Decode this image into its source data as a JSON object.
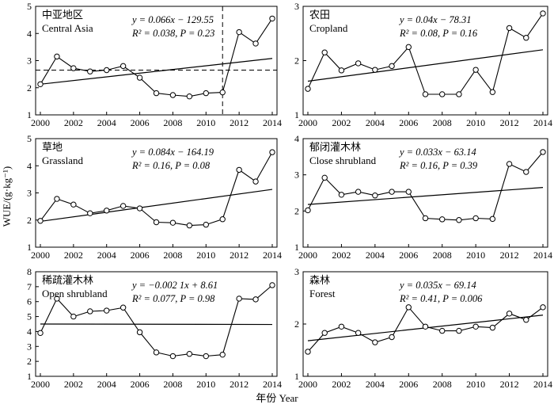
{
  "figure": {
    "ylabel": "WUE/(g·kg⁻¹)",
    "xlabel": "年份 Year"
  },
  "chart_data": [
    {
      "type": "line",
      "title_zh": "中亚地区",
      "title_en": "Central Asia",
      "equation": "y = 0.066x − 129.55",
      "stats": "R² = 0.038, P = 0.23",
      "x": [
        2000,
        2001,
        2002,
        2003,
        2004,
        2005,
        2006,
        2007,
        2008,
        2009,
        2010,
        2011,
        2012,
        2013,
        2014
      ],
      "values": [
        2.13,
        3.15,
        2.72,
        2.6,
        2.65,
        2.8,
        2.37,
        1.8,
        1.73,
        1.68,
        1.8,
        1.83,
        4.05,
        3.63,
        4.55
      ],
      "trend": {
        "start": [
          2000,
          2.13
        ],
        "end": [
          2014,
          3.08
        ]
      },
      "hline": 2.65,
      "vline": 2011,
      "xlim": [
        2000,
        2014
      ],
      "ylim": [
        1,
        5
      ],
      "xticks": [
        "2000",
        "2002",
        "2004",
        "2006",
        "2008",
        "2010",
        "2012",
        "2014"
      ],
      "yticks": [
        "1",
        "2",
        "3",
        "4",
        "5"
      ]
    },
    {
      "type": "line",
      "title_zh": "农田",
      "title_en": "Cropland",
      "equation": "y = 0.04x − 78.31",
      "stats": "R² = 0.08, P = 0.16",
      "x": [
        2000,
        2001,
        2002,
        2003,
        2004,
        2005,
        2006,
        2007,
        2008,
        2009,
        2010,
        2011,
        2012,
        2013,
        2014
      ],
      "values": [
        1.48,
        2.15,
        1.82,
        1.95,
        1.83,
        1.9,
        2.25,
        1.38,
        1.38,
        1.38,
        1.83,
        1.42,
        2.6,
        2.42,
        2.87
      ],
      "trend": {
        "start": [
          2000,
          1.62
        ],
        "end": [
          2014,
          2.2
        ]
      },
      "xlim": [
        2000,
        2014
      ],
      "ylim": [
        1,
        3
      ],
      "xticks": [
        "2000",
        "2002",
        "2004",
        "2006",
        "2008",
        "2010",
        "2012",
        "2014"
      ],
      "yticks": [
        "1",
        "2",
        "3"
      ]
    },
    {
      "type": "line",
      "title_zh": "草地",
      "title_en": "Grassland",
      "equation": "y = 0.084x − 164.19",
      "stats": "R² = 0.16, P = 0.08",
      "x": [
        2000,
        2001,
        2002,
        2003,
        2004,
        2005,
        2006,
        2007,
        2008,
        2009,
        2010,
        2011,
        2012,
        2013,
        2014
      ],
      "values": [
        1.97,
        2.78,
        2.57,
        2.25,
        2.35,
        2.52,
        2.43,
        1.92,
        1.9,
        1.8,
        1.83,
        2.03,
        3.85,
        3.42,
        4.5
      ],
      "trend": {
        "start": [
          2000,
          1.95
        ],
        "end": [
          2014,
          3.13
        ]
      },
      "xlim": [
        2000,
        2014
      ],
      "ylim": [
        1,
        5
      ],
      "xticks": [
        "2000",
        "2002",
        "2004",
        "2006",
        "2008",
        "2010",
        "2012",
        "2014"
      ],
      "yticks": [
        "1",
        "2",
        "3",
        "4",
        "5"
      ]
    },
    {
      "type": "line",
      "title_zh": "郁闭灌木林",
      "title_en": "Close shrubland",
      "equation": "y = 0.033x − 63.14",
      "stats": "R² = 0.16, P = 0.39",
      "x": [
        2000,
        2001,
        2002,
        2003,
        2004,
        2005,
        2006,
        2007,
        2008,
        2009,
        2010,
        2011,
        2012,
        2013,
        2014
      ],
      "values": [
        2.02,
        2.92,
        2.45,
        2.53,
        2.43,
        2.53,
        2.53,
        1.8,
        1.77,
        1.75,
        1.8,
        1.78,
        3.3,
        3.08,
        3.63
      ],
      "trend": {
        "start": [
          2000,
          2.18
        ],
        "end": [
          2014,
          2.65
        ]
      },
      "xlim": [
        2000,
        2014
      ],
      "ylim": [
        1,
        4
      ],
      "xticks": [
        "2000",
        "2002",
        "2004",
        "2006",
        "2008",
        "2010",
        "2012",
        "2014"
      ],
      "yticks": [
        "1",
        "2",
        "3",
        "4"
      ]
    },
    {
      "type": "line",
      "title_zh": "稀疏灌木林",
      "title_en": "Open shrubland",
      "equation": "y = −0.002 1x + 8.61",
      "stats": "R² = 0.077, P = 0.98",
      "x": [
        2000,
        2001,
        2002,
        2003,
        2004,
        2005,
        2006,
        2007,
        2008,
        2009,
        2010,
        2011,
        2012,
        2013,
        2014
      ],
      "values": [
        3.9,
        6.2,
        5.0,
        5.35,
        5.4,
        5.6,
        3.95,
        2.6,
        2.35,
        2.5,
        2.35,
        2.45,
        6.2,
        6.15,
        7.1
      ],
      "trend": {
        "start": [
          2000,
          4.5
        ],
        "end": [
          2014,
          4.47
        ]
      },
      "xlim": [
        2000,
        2014
      ],
      "ylim": [
        1,
        8
      ],
      "xticks": [
        "2000",
        "2002",
        "2004",
        "2006",
        "2008",
        "2010",
        "2012",
        "2014"
      ],
      "yticks": [
        "1",
        "2",
        "3",
        "4",
        "5",
        "6",
        "7",
        "8"
      ]
    },
    {
      "type": "line",
      "title_zh": "森林",
      "title_en": "Forest",
      "equation": "y = 0.035x − 69.14",
      "stats": "R² = 0.41, P = 0.006",
      "x": [
        2000,
        2001,
        2002,
        2003,
        2004,
        2005,
        2006,
        2007,
        2008,
        2009,
        2010,
        2011,
        2012,
        2013,
        2014
      ],
      "values": [
        1.47,
        1.83,
        1.95,
        1.83,
        1.65,
        1.75,
        2.32,
        1.95,
        1.87,
        1.87,
        1.95,
        1.93,
        2.2,
        2.08,
        2.32
      ],
      "trend": {
        "start": [
          2000,
          1.68
        ],
        "end": [
          2014,
          2.17
        ]
      },
      "xlim": [
        2000,
        2014
      ],
      "ylim": [
        1,
        3
      ],
      "xticks": [
        "2000",
        "2002",
        "2004",
        "2006",
        "2008",
        "2010",
        "2012",
        "2014"
      ],
      "yticks": [
        "1",
        "2",
        "3"
      ]
    }
  ]
}
